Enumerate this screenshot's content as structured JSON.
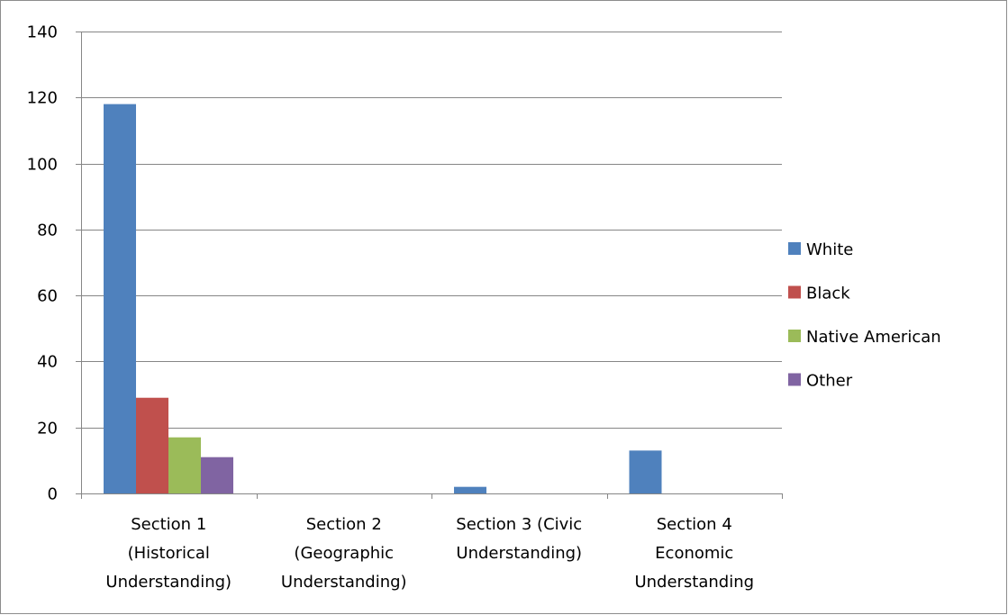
{
  "chart_data": {
    "type": "bar",
    "categories": [
      [
        "Section 1",
        "(Historical",
        "Understanding)"
      ],
      [
        "Section 2",
        "(Geographic",
        "Understanding)"
      ],
      [
        "Section 3 (Civic",
        "Understanding)"
      ],
      [
        "Section 4",
        "Economic",
        "Understanding"
      ]
    ],
    "series": [
      {
        "name": "White",
        "color": "#4F81BD",
        "values": [
          118,
          0,
          2,
          13
        ]
      },
      {
        "name": "Black",
        "color": "#C0504D",
        "values": [
          29,
          0,
          0,
          0
        ]
      },
      {
        "name": "Native American",
        "color": "#9BBB59",
        "values": [
          17,
          0,
          0,
          0
        ]
      },
      {
        "name": "Other",
        "color": "#8064A2",
        "values": [
          11,
          0,
          0,
          0
        ]
      }
    ],
    "ylim": [
      0,
      140
    ],
    "yticks": [
      0,
      20,
      40,
      60,
      80,
      100,
      120,
      140
    ],
    "grid": true,
    "legend_position": "right",
    "title": "",
    "xlabel": "",
    "ylabel": ""
  }
}
